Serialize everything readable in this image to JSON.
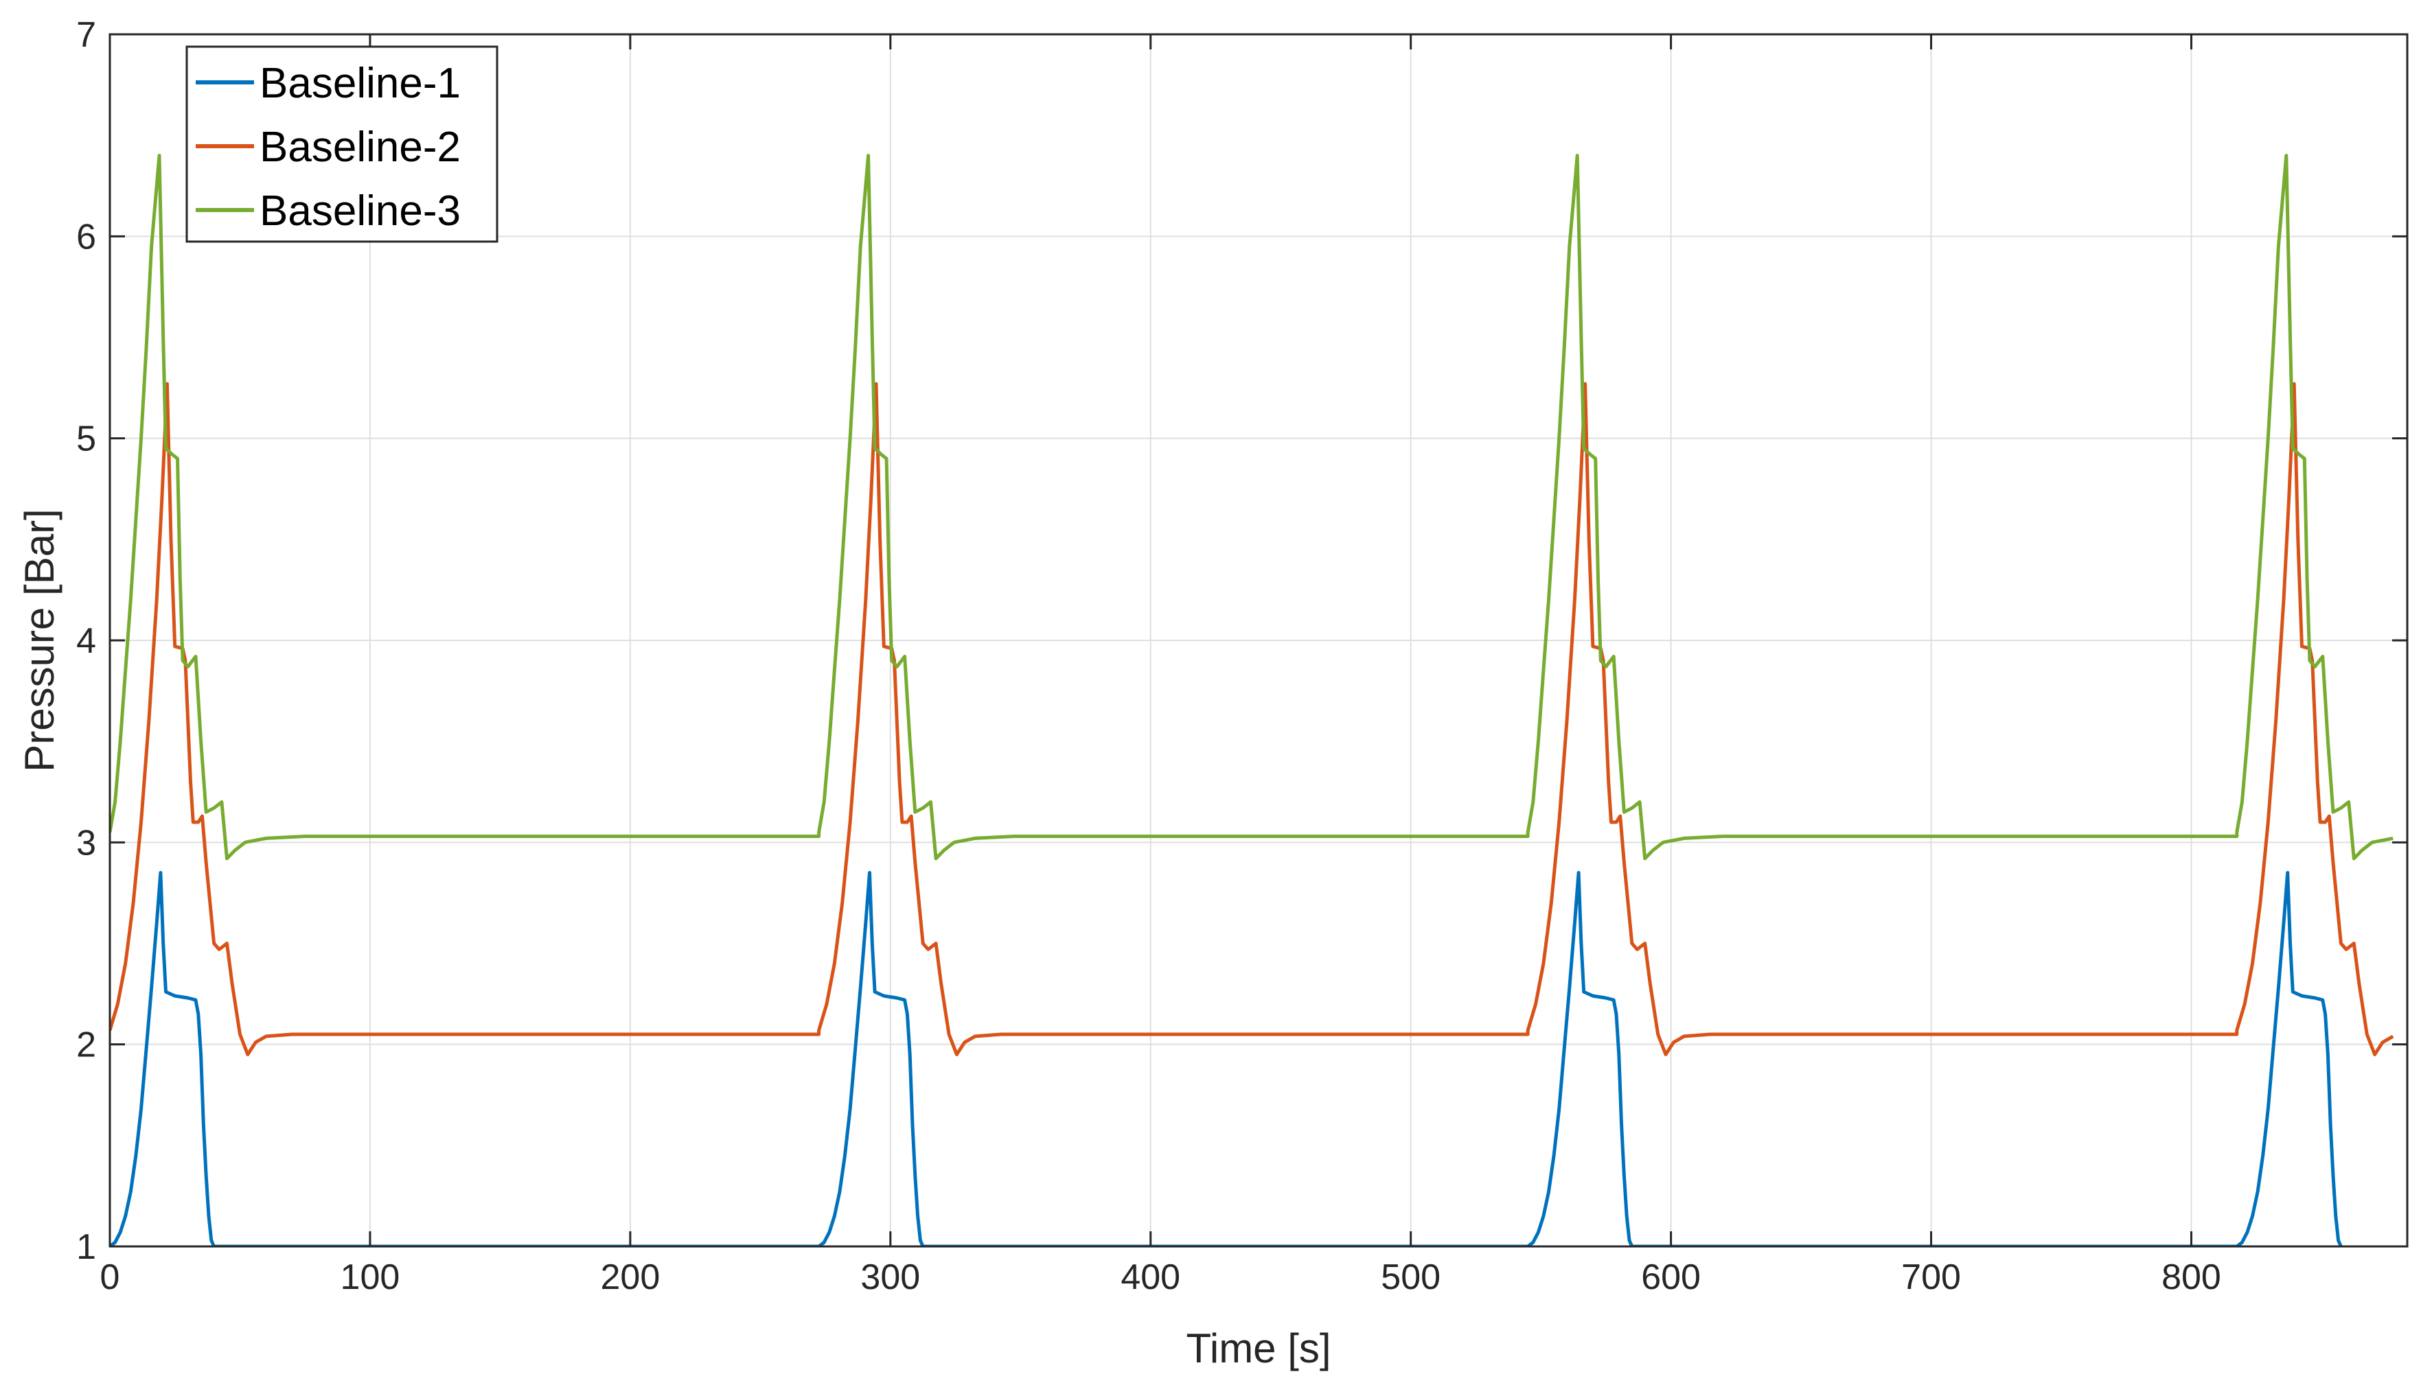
{
  "chart_data": {
    "type": "line",
    "title": "",
    "xlabel": "Time [s]",
    "ylabel": "Pressure [Bar]",
    "xlim": [
      0,
      883
    ],
    "ylim": [
      1,
      7
    ],
    "xticks": [
      0,
      100,
      200,
      300,
      400,
      500,
      600,
      700,
      800
    ],
    "yticks": [
      1,
      2,
      3,
      4,
      5,
      6,
      7
    ],
    "grid": true,
    "legend_position": "top-left",
    "period": 272.5,
    "series": [
      {
        "name": "Baseline-1",
        "color": "#0072BD",
        "points_first_cycle": [
          [
            0,
            1.0
          ],
          [
            2,
            1.02
          ],
          [
            4,
            1.07
          ],
          [
            6,
            1.15
          ],
          [
            8,
            1.27
          ],
          [
            10,
            1.45
          ],
          [
            12,
            1.68
          ],
          [
            14,
            1.98
          ],
          [
            16,
            2.28
          ],
          [
            18,
            2.6
          ],
          [
            19.5,
            2.85
          ],
          [
            20.5,
            2.5
          ],
          [
            21.5,
            2.26
          ],
          [
            25,
            2.24
          ],
          [
            30,
            2.23
          ],
          [
            33,
            2.22
          ],
          [
            34,
            2.15
          ],
          [
            35,
            1.95
          ],
          [
            36,
            1.6
          ],
          [
            37,
            1.35
          ],
          [
            38,
            1.15
          ],
          [
            39,
            1.03
          ],
          [
            40,
            1.0
          ],
          [
            272.5,
            1.0
          ]
        ]
      },
      {
        "name": "Baseline-2",
        "color": "#D95319",
        "points_first_cycle": [
          [
            0,
            2.07
          ],
          [
            3,
            2.2
          ],
          [
            6,
            2.4
          ],
          [
            9,
            2.7
          ],
          [
            12,
            3.1
          ],
          [
            15,
            3.6
          ],
          [
            18,
            4.2
          ],
          [
            20,
            4.7
          ],
          [
            22,
            5.27
          ],
          [
            23.5,
            4.5
          ],
          [
            25,
            3.97
          ],
          [
            28,
            3.96
          ],
          [
            29,
            3.9
          ],
          [
            31,
            3.3
          ],
          [
            32,
            3.1
          ],
          [
            34,
            3.1
          ],
          [
            35.5,
            3.13
          ],
          [
            37,
            2.9
          ],
          [
            40,
            2.5
          ],
          [
            42,
            2.47
          ],
          [
            45,
            2.5
          ],
          [
            47,
            2.3
          ],
          [
            50,
            2.05
          ],
          [
            53,
            1.95
          ],
          [
            56,
            2.01
          ],
          [
            60,
            2.04
          ],
          [
            70,
            2.05
          ],
          [
            272.5,
            2.05
          ]
        ]
      },
      {
        "name": "Baseline-3",
        "color": "#77AC30",
        "points_first_cycle": [
          [
            0,
            3.05
          ],
          [
            2,
            3.2
          ],
          [
            4,
            3.5
          ],
          [
            6,
            3.85
          ],
          [
            8,
            4.2
          ],
          [
            10,
            4.6
          ],
          [
            12,
            5.0
          ],
          [
            14,
            5.45
          ],
          [
            16,
            5.95
          ],
          [
            19,
            6.4
          ],
          [
            20.5,
            5.5
          ],
          [
            21.5,
            4.95
          ],
          [
            24,
            4.92
          ],
          [
            26,
            4.9
          ],
          [
            27,
            4.3
          ],
          [
            28,
            3.9
          ],
          [
            30,
            3.87
          ],
          [
            33,
            3.92
          ],
          [
            35,
            3.5
          ],
          [
            37,
            3.15
          ],
          [
            40,
            3.17
          ],
          [
            43,
            3.2
          ],
          [
            45,
            2.92
          ],
          [
            48,
            2.96
          ],
          [
            52,
            3.0
          ],
          [
            60,
            3.02
          ],
          [
            75,
            3.03
          ],
          [
            272.5,
            3.03
          ]
        ]
      }
    ]
  },
  "legend": {
    "entries": [
      "Baseline-1",
      "Baseline-2",
      "Baseline-3"
    ]
  }
}
